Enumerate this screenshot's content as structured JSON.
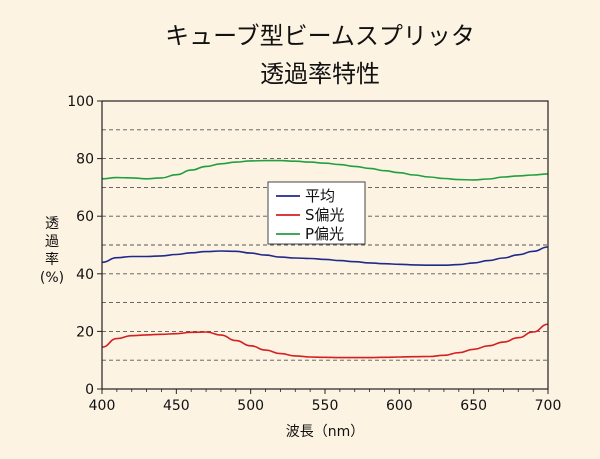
{
  "chart_data": {
    "type": "line",
    "title_line1": "キューブ型ビームスプリッタ",
    "title_line2": "透過率特性",
    "xlabel": "波長（nm）",
    "ylabel_lines": [
      "透",
      "過",
      "率",
      "(%)"
    ],
    "xlim": [
      400,
      700
    ],
    "ylim": [
      0,
      100
    ],
    "xticks": [
      400,
      450,
      500,
      550,
      600,
      650,
      700
    ],
    "yticks": [
      0,
      20,
      40,
      60,
      80,
      100
    ],
    "grid": "horizontal dashed every 10",
    "legend_position": "center",
    "series": [
      {
        "name": "平均",
        "color": "#1f2a8a",
        "x": [
          400,
          410,
          420,
          430,
          440,
          450,
          460,
          470,
          480,
          490,
          500,
          510,
          520,
          530,
          540,
          550,
          560,
          570,
          580,
          590,
          600,
          610,
          620,
          630,
          640,
          650,
          660,
          670,
          680,
          690,
          700
        ],
        "y": [
          44,
          45.6,
          46,
          46,
          46.2,
          46.7,
          47.3,
          47.7,
          47.9,
          47.8,
          47.2,
          46.5,
          45.8,
          45.5,
          45.3,
          45,
          44.6,
          44.2,
          43.8,
          43.5,
          43.3,
          43.1,
          43,
          43,
          43.2,
          43.8,
          44.6,
          45.5,
          46.6,
          47.8,
          49.3
        ]
      },
      {
        "name": "S偏光",
        "color": "#d42020",
        "x": [
          400,
          410,
          420,
          430,
          440,
          450,
          460,
          470,
          480,
          490,
          500,
          510,
          520,
          530,
          540,
          550,
          560,
          570,
          580,
          590,
          600,
          610,
          620,
          630,
          640,
          650,
          660,
          670,
          680,
          690,
          700
        ],
        "y": [
          14.5,
          17.5,
          18.5,
          18.8,
          19,
          19.2,
          19.7,
          19.8,
          18.7,
          16.8,
          15,
          13.5,
          12.3,
          11.5,
          11.1,
          11,
          10.9,
          10.9,
          10.9,
          11,
          11.1,
          11.2,
          11.3,
          11.7,
          12.6,
          13.8,
          15,
          16.3,
          17.8,
          19.8,
          22.5
        ]
      },
      {
        "name": "P偏光",
        "color": "#20a040",
        "x": [
          400,
          410,
          420,
          430,
          440,
          450,
          460,
          470,
          480,
          490,
          500,
          510,
          520,
          530,
          540,
          550,
          560,
          570,
          580,
          590,
          600,
          610,
          620,
          630,
          640,
          650,
          660,
          670,
          680,
          690,
          700
        ],
        "y": [
          73,
          73.4,
          73.3,
          73,
          73.3,
          74.4,
          76,
          77.3,
          78.2,
          78.8,
          79.2,
          79.3,
          79.3,
          79.1,
          78.8,
          78.4,
          77.9,
          77.3,
          76.6,
          75.8,
          75.1,
          74.3,
          73.6,
          73.1,
          72.7,
          72.6,
          72.9,
          73.6,
          74,
          74.3,
          74.7
        ]
      }
    ]
  }
}
